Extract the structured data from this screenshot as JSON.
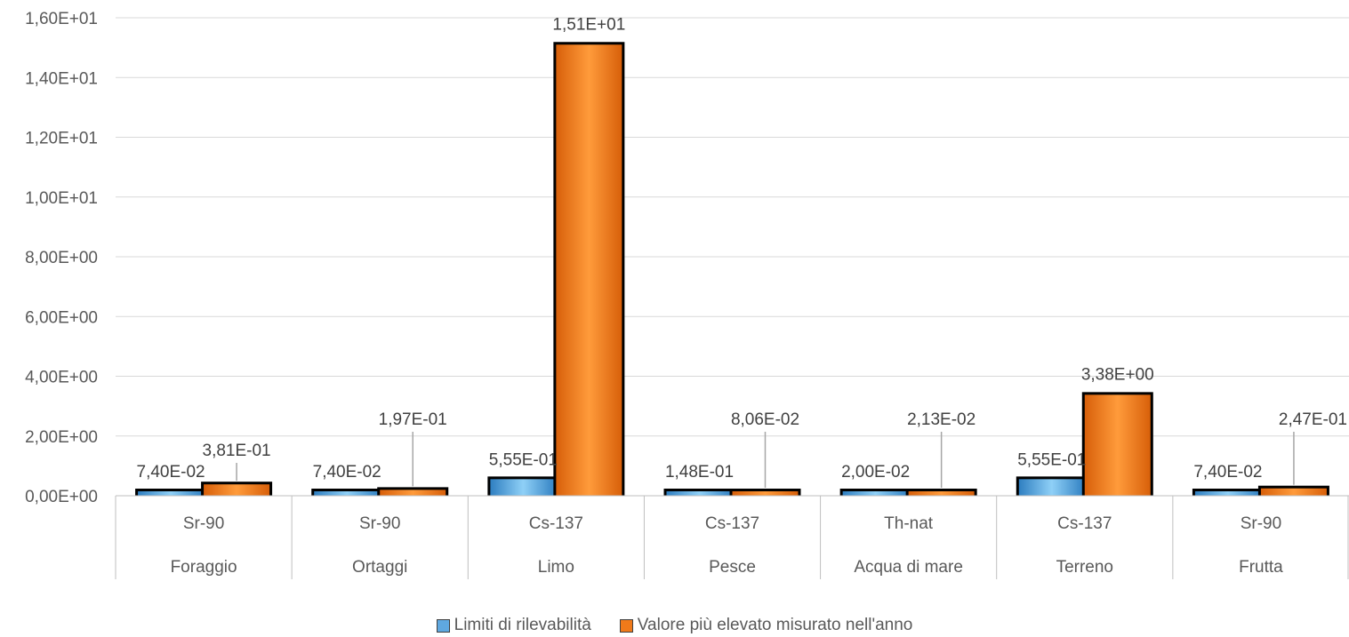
{
  "chart_data": {
    "type": "bar",
    "title": "",
    "xlabel": "",
    "ylabel": "",
    "ylim": [
      0,
      16
    ],
    "y_ticks": [
      {
        "value": 0,
        "label": "0,00E+00"
      },
      {
        "value": 2,
        "label": "2,00E+00"
      },
      {
        "value": 4,
        "label": "4,00E+00"
      },
      {
        "value": 6,
        "label": "6,00E+00"
      },
      {
        "value": 8,
        "label": "8,00E+00"
      },
      {
        "value": 10,
        "label": "1,00E+01"
      },
      {
        "value": 12,
        "label": "1,20E+01"
      },
      {
        "value": 14,
        "label": "1,40E+01"
      },
      {
        "value": 16,
        "label": "1,60E+01"
      }
    ],
    "categories": [
      {
        "group": "Foraggio",
        "nuclide": "Sr-90"
      },
      {
        "group": "Ortaggi",
        "nuclide": "Sr-90"
      },
      {
        "group": "Limo",
        "nuclide": "Cs-137"
      },
      {
        "group": "Pesce",
        "nuclide": "Cs-137"
      },
      {
        "group": "Acqua di mare",
        "nuclide": "Th-nat"
      },
      {
        "group": "Terreno",
        "nuclide": "Cs-137"
      },
      {
        "group": "Frutta",
        "nuclide": "Sr-90"
      }
    ],
    "series": [
      {
        "name": "Limiti di rilevabilità",
        "color": "#5fa8e0",
        "values": [
          0.074,
          0.074,
          0.555,
          0.148,
          0.02,
          0.555,
          0.074
        ],
        "labels": [
          "7,40E-02",
          "7,40E-02",
          "5,55E-01",
          "1,48E-01",
          "2,00E-02",
          "5,55E-01",
          "7,40E-02"
        ]
      },
      {
        "name": "Valore più elevato misurato nell'anno",
        "color": "#f07a1a",
        "values": [
          0.381,
          0.197,
          15.1,
          0.0806,
          0.0213,
          3.38,
          0.247
        ],
        "labels": [
          "3,81E-01",
          "1,97E-01",
          "1,51E+01",
          "8,06E-02",
          "2,13E-02",
          "3,38E+00",
          "2,47E-01"
        ]
      }
    ],
    "legend_position": "bottom",
    "grid": true
  }
}
